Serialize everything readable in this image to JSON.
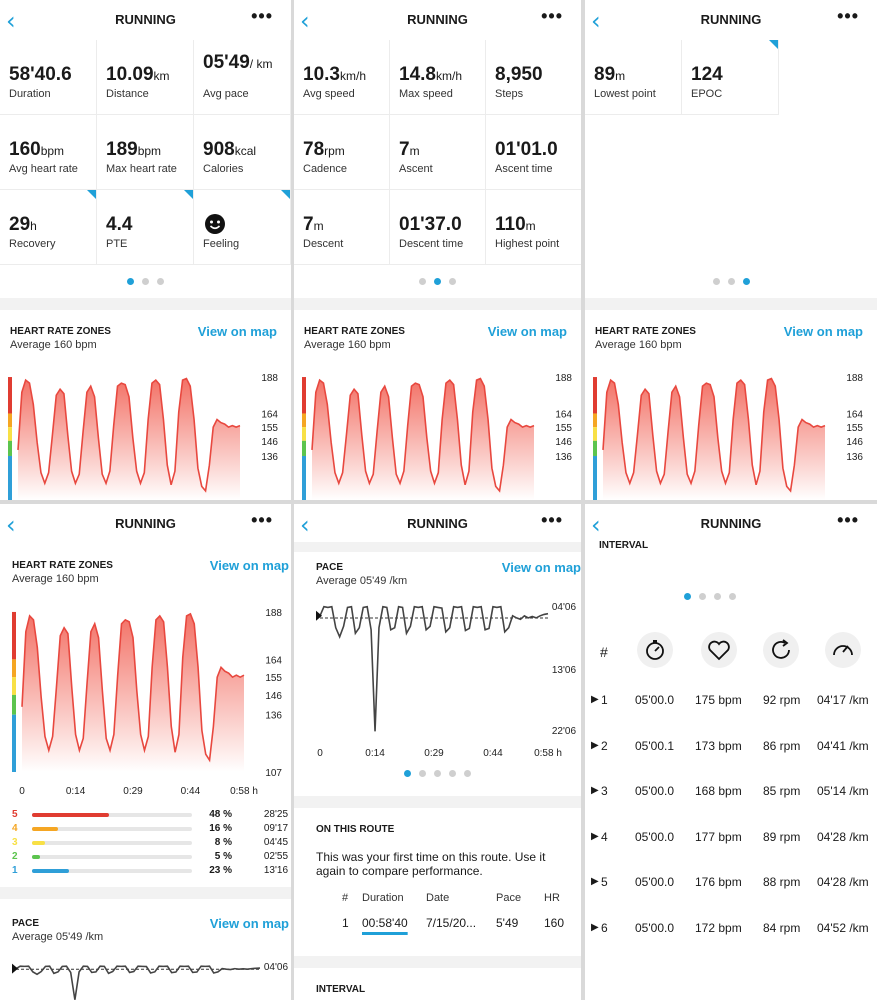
{
  "header": {
    "back_icon": "chevron-left-icon",
    "title": "RUNNING",
    "more_icon": "more-icon"
  },
  "summary_pages": [
    [
      {
        "value": "58'40.6",
        "unit": "",
        "label": "Duration",
        "corner": false
      },
      {
        "value": "10.09",
        "unit": "km",
        "label": "Distance",
        "corner": false
      },
      {
        "value": "05'49",
        "unit": "/ km",
        "label": "Avg pace",
        "corner": false
      },
      {
        "value": "160",
        "unit": "bpm",
        "label": "Avg heart rate",
        "corner": false
      },
      {
        "value": "189",
        "unit": "bpm",
        "label": "Max heart rate",
        "corner": false
      },
      {
        "value": "908",
        "unit": "kcal",
        "label": "Calories",
        "corner": false
      },
      {
        "value": "29",
        "unit": "h",
        "label": "Recovery",
        "corner": true
      },
      {
        "value": "4.4",
        "unit": "",
        "label": "PTE",
        "corner": true
      },
      {
        "value": "",
        "unit": "",
        "label": "Feeling",
        "corner": true,
        "icon": "smiley-icon"
      }
    ],
    [
      {
        "value": "10.3",
        "unit": "km/h",
        "label": "Avg speed"
      },
      {
        "value": "14.8",
        "unit": "km/h",
        "label": "Max speed"
      },
      {
        "value": "8,950",
        "unit": "",
        "label": "Steps"
      },
      {
        "value": "78",
        "unit": "rpm",
        "label": "Cadence"
      },
      {
        "value": "7",
        "unit": "m",
        "label": "Ascent"
      },
      {
        "value": "01'01.0",
        "unit": "",
        "label": "Ascent time"
      },
      {
        "value": "7",
        "unit": "m",
        "label": "Descent"
      },
      {
        "value": "01'37.0",
        "unit": "",
        "label": "Descent time"
      },
      {
        "value": "110",
        "unit": "m",
        "label": "Highest point"
      }
    ],
    [
      {
        "value": "89",
        "unit": "m",
        "label": "Lowest point"
      },
      {
        "value": "124",
        "unit": "",
        "label": "EPOC",
        "corner": true
      }
    ]
  ],
  "hr_section": {
    "title": "HEART RATE ZONES",
    "subtitle": "Average 160 bpm",
    "link": "View on map"
  },
  "pace_section": {
    "title": "PACE",
    "subtitle": "Average 05'49 /km",
    "link": "View on map"
  },
  "colors": {
    "accent": "#1fa0d8",
    "hr_line": "#e8483f",
    "zone5": "#e03c31",
    "zone4": "#f5a623",
    "zone3": "#f8e045",
    "zone2": "#5cc44e",
    "zone1": "#2f9fd8"
  },
  "chart_data": [
    {
      "type": "area",
      "title": "HEART RATE ZONES",
      "subtitle": "Average 160 bpm",
      "x_tick_labels": [
        "0",
        "0:14",
        "0:29",
        "0:44",
        "0:58 h"
      ],
      "y_tick_labels": [
        "188",
        "164",
        "155",
        "146",
        "136",
        "107"
      ],
      "ylim": [
        107,
        190
      ],
      "x_min": [
        0,
        1,
        2,
        3,
        4,
        5,
        6,
        7,
        8,
        9,
        10,
        11,
        12,
        13,
        14,
        15,
        16,
        17,
        18,
        19,
        20,
        21,
        22,
        23,
        24,
        25,
        26,
        27,
        28,
        29,
        30,
        31,
        32,
        33,
        34,
        35,
        36,
        37,
        38,
        39,
        40,
        41,
        42,
        43,
        44,
        45,
        46,
        47,
        48,
        49,
        50,
        51,
        52,
        53,
        54,
        55,
        56,
        57,
        58
      ],
      "series": [
        {
          "values": [
            140,
            178,
            186,
            184,
            170,
            145,
            125,
            118,
            125,
            150,
            176,
            180,
            177,
            150,
            126,
            118,
            124,
            152,
            178,
            182,
            175,
            148,
            124,
            118,
            126,
            156,
            182,
            184,
            183,
            175,
            148,
            126,
            118,
            125,
            160,
            184,
            186,
            183,
            160,
            130,
            117,
            126,
            165,
            186,
            187,
            182,
            160,
            128,
            116,
            113,
            130,
            155,
            160,
            158,
            157,
            155,
            156,
            155,
            156
          ]
        }
      ]
    },
    {
      "type": "line",
      "title": "PACE",
      "subtitle": "Average 05'49 /km",
      "x_tick_labels": [
        "0",
        "0:14",
        "0:29",
        "0:44",
        "0:58 h"
      ],
      "y_tick_labels": [
        "04'06",
        "13'06",
        "22'06"
      ],
      "avg_line": "05'49",
      "x_min": [
        0,
        1,
        2,
        3,
        4,
        5,
        6,
        7,
        8,
        9,
        10,
        11,
        12,
        13,
        14,
        15,
        16,
        17,
        18,
        19,
        20,
        21,
        22,
        23,
        24,
        25,
        26,
        27,
        28,
        29,
        30,
        31,
        32,
        33,
        34,
        35,
        36,
        37,
        38,
        39,
        40,
        41,
        42,
        43,
        44,
        45,
        46,
        47,
        48,
        49,
        50,
        51,
        52,
        53,
        54,
        55,
        56,
        57,
        58
      ],
      "series": [
        {
          "values": [
            5.5,
            4.2,
            4.3,
            4.2,
            7.2,
            8.5,
            7.0,
            4.3,
            4.2,
            8.0,
            7.2,
            4.3,
            4.2,
            7.5,
            22.0,
            7.2,
            4.2,
            4.3,
            7.5,
            7.2,
            4.2,
            4.3,
            8.0,
            7.0,
            4.2,
            4.3,
            4.2,
            7.5,
            7.0,
            4.2,
            4.3,
            4.4,
            7.8,
            7.2,
            4.2,
            4.3,
            4.2,
            7.6,
            7.3,
            4.2,
            4.3,
            4.2,
            7.5,
            7.3,
            4.2,
            4.3,
            4.2,
            7.8,
            7.2,
            5.5,
            5.8,
            6.0,
            5.5,
            5.8,
            5.6,
            5.8,
            5.5,
            5.3,
            5.2
          ]
        }
      ]
    }
  ],
  "zones": [
    {
      "zone": "5",
      "percent": "48 %",
      "time": "28'25",
      "fraction": 0.48
    },
    {
      "zone": "4",
      "percent": "16 %",
      "time": "09'17",
      "fraction": 0.16
    },
    {
      "zone": "3",
      "percent": "8 %",
      "time": "04'45",
      "fraction": 0.08
    },
    {
      "zone": "2",
      "percent": "5 %",
      "time": "02'55",
      "fraction": 0.05
    },
    {
      "zone": "1",
      "percent": "23 %",
      "time": "13'16",
      "fraction": 0.23
    }
  ],
  "route": {
    "title": "ON THIS ROUTE",
    "text": "This was your first time on this route. Use it again to compare performance.",
    "columns": [
      "#",
      "Duration",
      "Date",
      "Pace",
      "HR"
    ],
    "row": [
      "1",
      "00:58'40",
      "7/15/20...",
      "5'49",
      "160"
    ]
  },
  "interval": {
    "title": "INTERVAL",
    "hash": "#",
    "icons": [
      "stopwatch-icon",
      "heart-icon",
      "cadence-icon",
      "speedometer-icon"
    ],
    "rows": [
      [
        "1",
        "05'00.0",
        "175 bpm",
        "92 rpm",
        "04'17 /km"
      ],
      [
        "2",
        "05'00.1",
        "173 bpm",
        "86 rpm",
        "04'41 /km"
      ],
      [
        "3",
        "05'00.0",
        "168 bpm",
        "85 rpm",
        "05'14 /km"
      ],
      [
        "4",
        "05'00.0",
        "177 bpm",
        "89 rpm",
        "04'28 /km"
      ],
      [
        "5",
        "05'00.0",
        "176 bpm",
        "88 rpm",
        "04'28 /km"
      ],
      [
        "6",
        "05'00.0",
        "172 bpm",
        "84 rpm",
        "04'52 /km"
      ]
    ]
  }
}
